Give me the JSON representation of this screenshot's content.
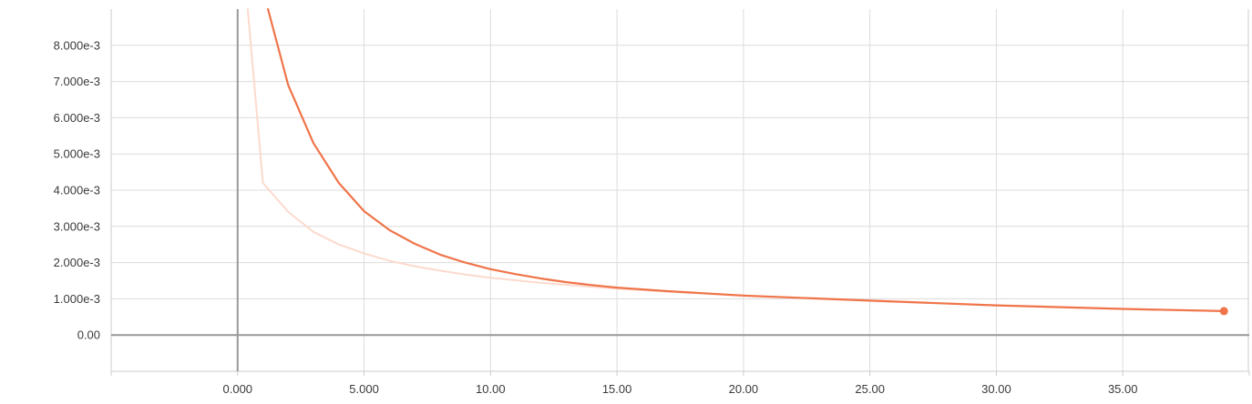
{
  "chart_data": {
    "type": "line",
    "title": "",
    "xlabel": "",
    "ylabel": "",
    "xlim": [
      -5,
      40
    ],
    "ylim": [
      -0.001,
      0.009
    ],
    "grid": true,
    "x_ticks": [
      "0.000",
      "5.000",
      "10.00",
      "15.00",
      "20.00",
      "25.00",
      "30.00",
      "35.00"
    ],
    "x_tick_values": [
      0,
      5,
      10,
      15,
      20,
      25,
      30,
      35
    ],
    "y_ticks": [
      "0.00",
      "1.000e-3",
      "2.000e-3",
      "3.000e-3",
      "4.000e-3",
      "5.000e-3",
      "6.000e-3",
      "7.000e-3",
      "8.000e-3"
    ],
    "y_tick_values": [
      0,
      0.001,
      0.002,
      0.003,
      0.004,
      0.005,
      0.006,
      0.007,
      0.008
    ],
    "series": [
      {
        "role": "raw",
        "color": "#fcdacd",
        "x": [
          0.4,
          1,
          2,
          3,
          4,
          5,
          6,
          7,
          8,
          9,
          10,
          12,
          15,
          20,
          25,
          30,
          35,
          39
        ],
        "y": [
          0.0095,
          0.0042,
          0.0034,
          0.00285,
          0.0025,
          0.00225,
          0.00205,
          0.0019,
          0.00178,
          0.00167,
          0.00158,
          0.00144,
          0.00128,
          0.00108,
          0.00095,
          0.00082,
          0.00072,
          0.00066
        ]
      },
      {
        "role": "smoothed",
        "color": "#f07449",
        "x": [
          1.2,
          2,
          3,
          4,
          5,
          6,
          7,
          8,
          9,
          10,
          11,
          12,
          13,
          14,
          15,
          17,
          20,
          25,
          30,
          35,
          39
        ],
        "y": [
          0.0095,
          0.0069,
          0.0053,
          0.0042,
          0.00342,
          0.0029,
          0.00252,
          0.00222,
          0.002,
          0.00182,
          0.00168,
          0.00156,
          0.00146,
          0.00138,
          0.00131,
          0.00121,
          0.00109,
          0.00095,
          0.00082,
          0.00072,
          0.00066
        ]
      }
    ],
    "last_point": {
      "x": 39,
      "y": 0.00066
    }
  }
}
